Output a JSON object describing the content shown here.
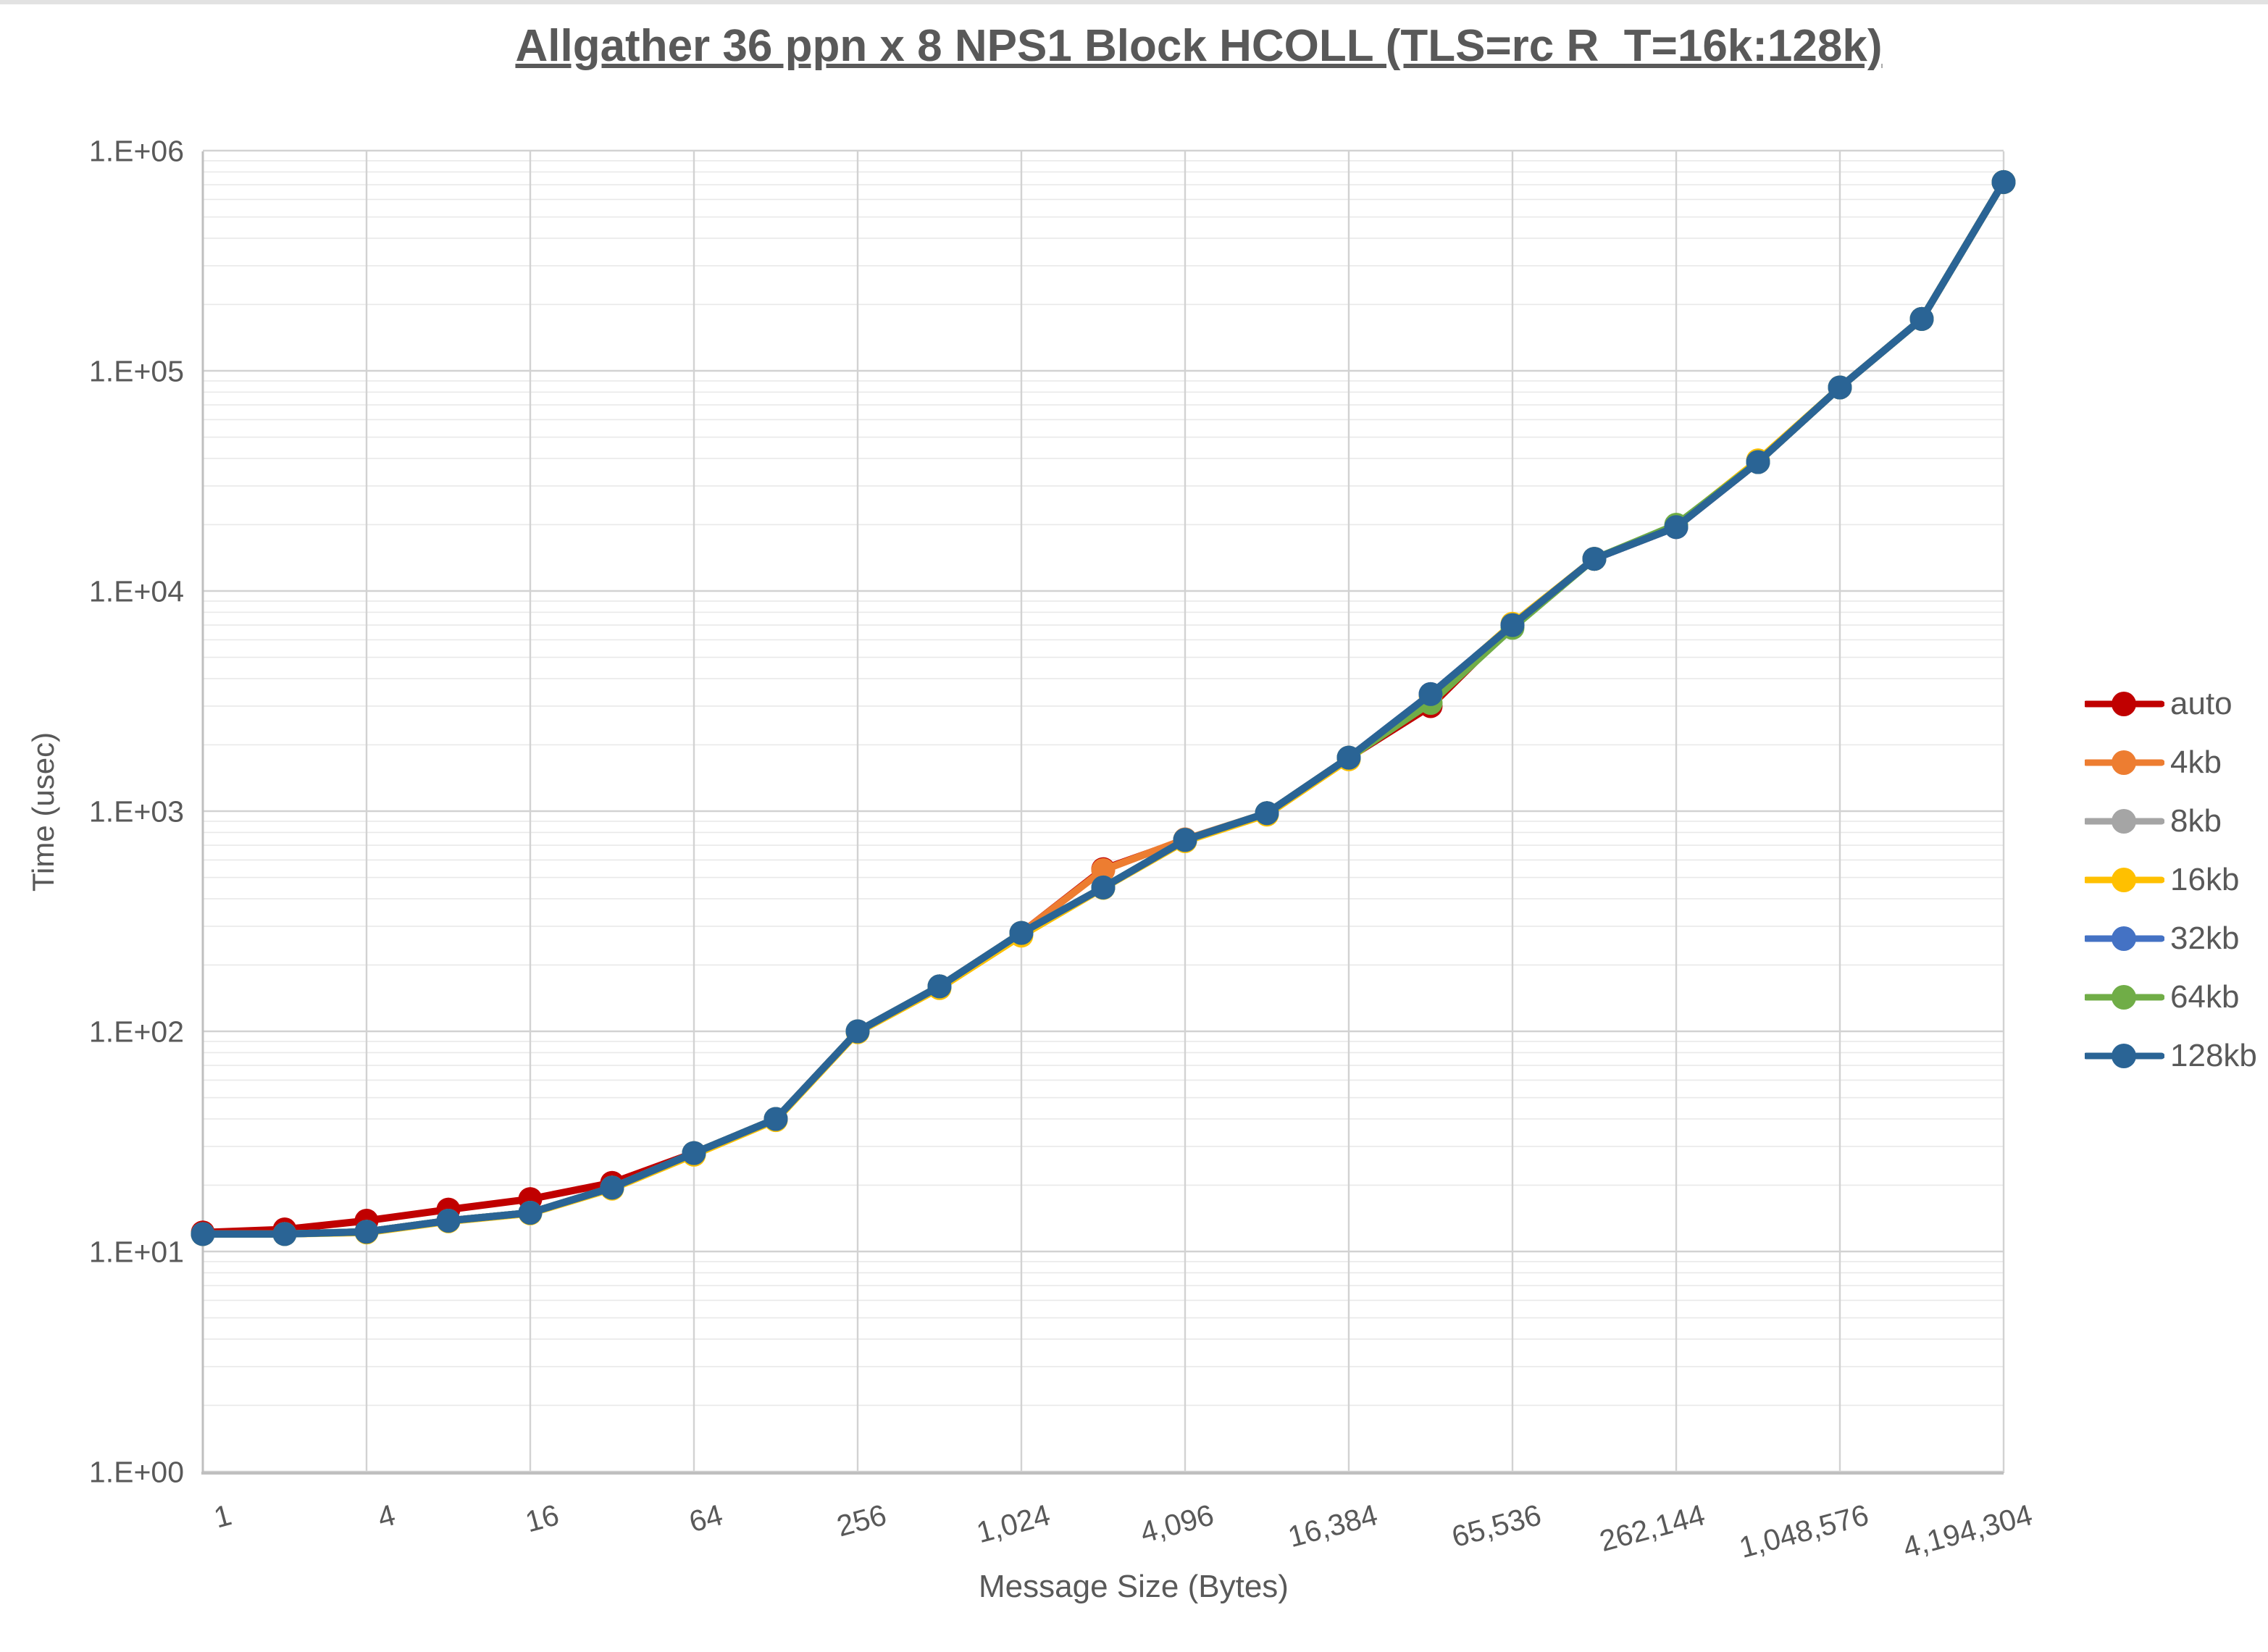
{
  "title": {
    "text": "Allgather 36 ppn x 8 NPS1 Block HCOLL (TLS=rc R_T=16k:128k)"
  },
  "chart_data": {
    "type": "line",
    "title": "Allgather 36 ppn x 8 NPS1 Block HCOLL (TLS=rc R_T=16k:128k)",
    "xlabel": "Message Size (Bytes)",
    "ylabel": "Time (usec)",
    "x_scale": "log2",
    "y_scale": "log10",
    "xlim": [
      1,
      4194304
    ],
    "ylim": [
      1,
      1000000
    ],
    "grid": "major and minor log gridlines on",
    "legend_position": "right",
    "x": [
      1,
      2,
      4,
      8,
      16,
      32,
      64,
      128,
      256,
      512,
      1024,
      2048,
      4096,
      8192,
      16384,
      32768,
      65536,
      131072,
      262144,
      524288,
      1048576,
      2097152,
      4194304
    ],
    "x_tick_values": [
      1,
      4,
      16,
      64,
      256,
      1024,
      4096,
      16384,
      65536,
      262144,
      1048576,
      4194304
    ],
    "x_tick_labels": [
      "1",
      "4",
      "16",
      "64",
      "256",
      "1,024",
      "4,096",
      "16,384",
      "65,536",
      "262,144",
      "1,048,576",
      "4,194,304"
    ],
    "y_tick_labels": [
      "1.E+00",
      "1.E+01",
      "1.E+02",
      "1.E+03",
      "1.E+04",
      "1.E+05",
      "1.E+06"
    ],
    "series": [
      {
        "name": "auto",
        "color": "#C00000",
        "values": [
          12.2,
          12.6,
          13.8,
          15.5,
          17.3,
          20.5,
          28,
          40,
          100,
          160,
          280,
          545,
          740,
          980,
          1750,
          3000,
          7000,
          14000,
          19500,
          38500,
          84000,
          172000,
          720000
        ]
      },
      {
        "name": "4kb",
        "color": "#ED7D31",
        "values": [
          12,
          12,
          12.3,
          13.8,
          15,
          19.5,
          28,
          40,
          100,
          160,
          280,
          540,
          745,
          980,
          1750,
          3400,
          7000,
          14000,
          19500,
          38500,
          84000,
          172000,
          720000
        ]
      },
      {
        "name": "8kb",
        "color": "#A5A5A5",
        "values": [
          12,
          12,
          12.3,
          13.8,
          15,
          19.5,
          28,
          40,
          100,
          160,
          280,
          450,
          740,
          980,
          1750,
          3400,
          7000,
          14000,
          19500,
          38500,
          84000,
          172000,
          720000
        ]
      },
      {
        "name": "16kb",
        "color": "#FFC000",
        "values": [
          12,
          12,
          12.2,
          13.7,
          14.9,
          19.3,
          27.5,
          39.5,
          99,
          157,
          272,
          448,
          730,
          965,
          1720,
          3330,
          7100,
          14000,
          19800,
          39200,
          84000,
          172000,
          720000
        ]
      },
      {
        "name": "32kb",
        "color": "#4472C4",
        "values": [
          12,
          12,
          12.3,
          13.8,
          15,
          19.5,
          28,
          40,
          100,
          160,
          280,
          450,
          740,
          980,
          1750,
          3400,
          7000,
          14000,
          19500,
          38500,
          84000,
          172000,
          720000
        ]
      },
      {
        "name": "64kb",
        "color": "#70AD47",
        "values": [
          12,
          12,
          12.3,
          13.8,
          15,
          19.5,
          28,
          40,
          100,
          160,
          280,
          450,
          740,
          980,
          1750,
          3100,
          6800,
          14000,
          20000,
          38500,
          84000,
          172000,
          720000
        ]
      },
      {
        "name": "128kb",
        "color": "#2A6495",
        "values": [
          12,
          12,
          12.3,
          13.8,
          15,
          19.5,
          28,
          40,
          100,
          160,
          280,
          450,
          740,
          980,
          1750,
          3400,
          7000,
          14000,
          19500,
          38500,
          84000,
          172000,
          720000
        ]
      }
    ]
  },
  "style_colors": {
    "text": "#595959",
    "axis_line": "#BFBFBF",
    "major_grid": "#D2D2D2",
    "minor_grid": "#E9E9E9"
  }
}
